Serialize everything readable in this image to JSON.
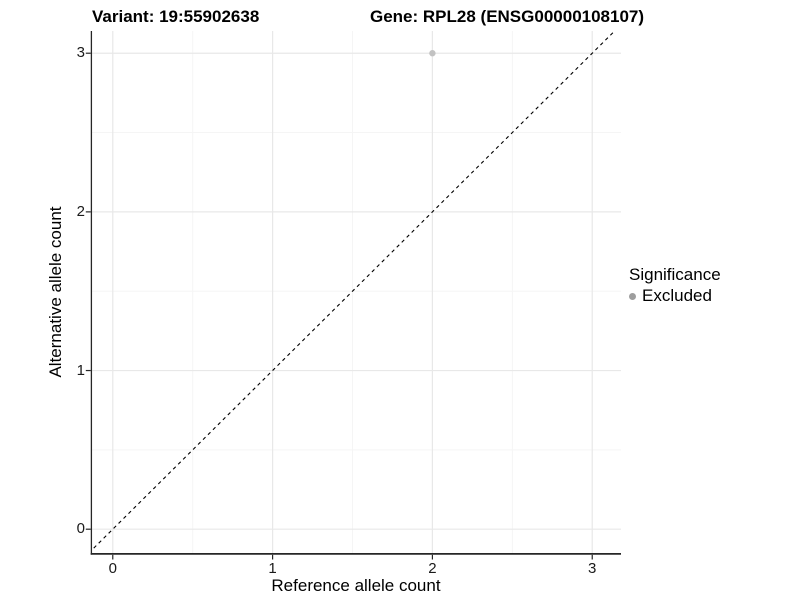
{
  "titles": {
    "variant": "Variant: 19:55902638",
    "gene": "Gene: RPL28 (ENSG00000108107)"
  },
  "legend": {
    "title": "Significance",
    "items": [
      {
        "label": "Excluded",
        "color": "#9e9e9e",
        "marker": "circle"
      }
    ]
  },
  "chart_data": {
    "type": "scatter",
    "title": "Variant: 19:55902638  /  Gene: RPL28 (ENSG00000108107)",
    "xlabel": "Reference allele count",
    "ylabel": "Alternative allele count",
    "xlim": [
      -0.13,
      3.18
    ],
    "ylim": [
      -0.15,
      3.14
    ],
    "x_ticks": [
      0,
      1,
      2,
      3
    ],
    "y_ticks": [
      0,
      1,
      2,
      3
    ],
    "x_minor_ticks": [
      0.5,
      1.5,
      2.5
    ],
    "y_minor_ticks": [
      0.5,
      1.5,
      2.5
    ],
    "grid": true,
    "legend_position": "right",
    "series": [
      {
        "name": "Excluded",
        "color": "#c2c2c2",
        "points": [
          {
            "x": 2,
            "y": 3
          }
        ]
      }
    ],
    "reference_line": {
      "type": "identity",
      "slope": 1,
      "intercept": 0,
      "style": "dashed",
      "color": "#000000"
    }
  },
  "colors": {
    "grid_major": "#e8e8e8",
    "grid_minor": "#f5f5f5",
    "axis": "#262626",
    "point": "#c2c2c2"
  }
}
